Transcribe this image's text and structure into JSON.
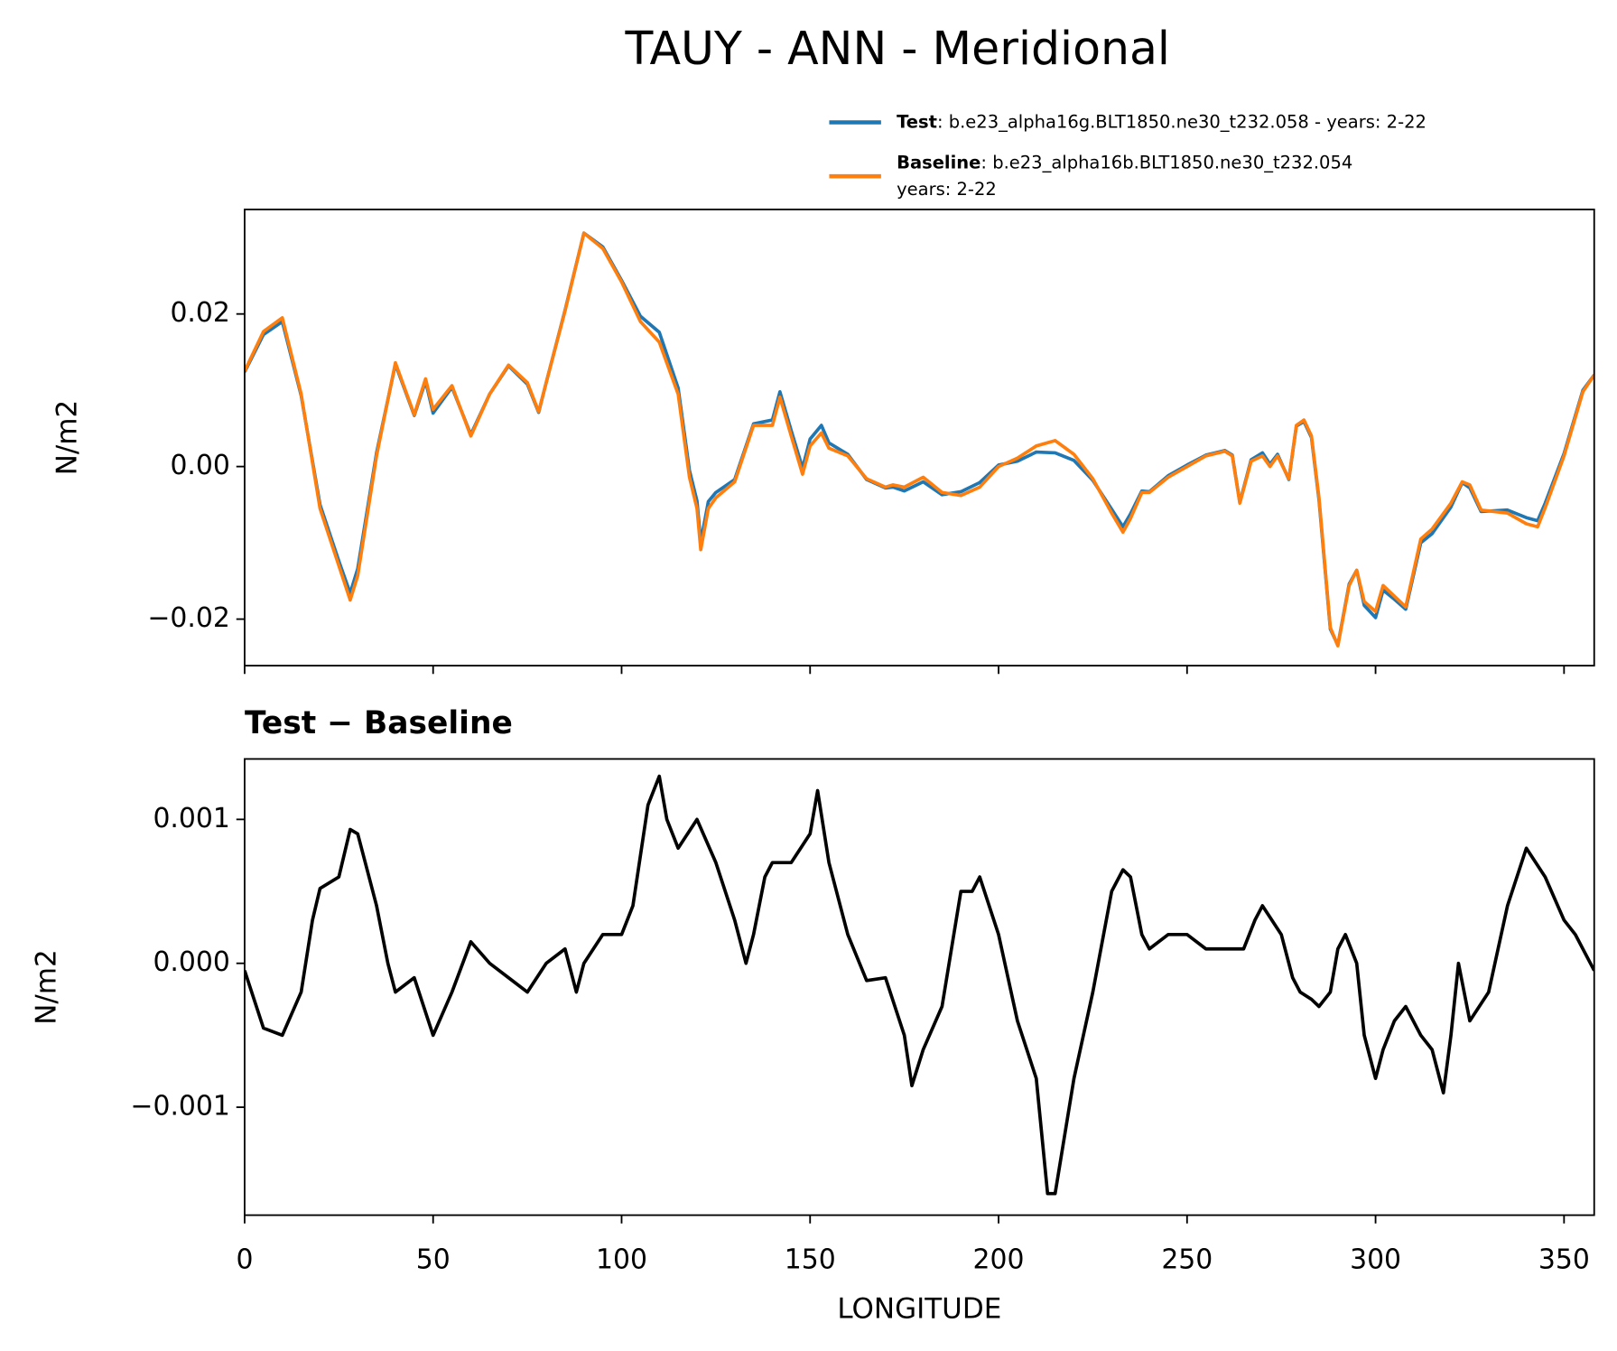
{
  "title": "TAUY - ANN - Meridional",
  "chart_data": [
    {
      "type": "line",
      "ylabel": "N/m2",
      "xlim": [
        0,
        358
      ],
      "ylim": [
        -0.0261,
        0.0337
      ],
      "xticks": [
        0,
        50,
        100,
        150,
        200,
        250,
        300,
        350
      ],
      "yticks": [
        {
          "value": -0.02,
          "label": "−0.02"
        },
        {
          "value": 0,
          "label": "0.00"
        },
        {
          "value": 0.02,
          "label": "0.02"
        }
      ],
      "legend": "upper right",
      "x": [
        0,
        5,
        10,
        15,
        20,
        25,
        28,
        30,
        35,
        40,
        45,
        48,
        50,
        55,
        60,
        65,
        70,
        75,
        78,
        80,
        85,
        90,
        95,
        100,
        105,
        110,
        115,
        118,
        120,
        121,
        123,
        125,
        130,
        135,
        140,
        142,
        145,
        148,
        150,
        153,
        155,
        160,
        165,
        170,
        172,
        175,
        180,
        185,
        190,
        195,
        200,
        205,
        210,
        215,
        220,
        225,
        230,
        233,
        235,
        238,
        240,
        245,
        250,
        255,
        260,
        262,
        264,
        267,
        270,
        272,
        274,
        277,
        279,
        281,
        283,
        285,
        288,
        290,
        293,
        295,
        297,
        300,
        302,
        305,
        308,
        312,
        315,
        320,
        323,
        325,
        328,
        335,
        340,
        343,
        345,
        350,
        355,
        358
      ],
      "series": [
        {
          "name": "Test",
          "description": [
            ": b.e23_alpha16g.BLT1850.ne30_t232.058 - years: 2-22"
          ],
          "color": "#1f77b4",
          "values": [
            0.0124,
            0.0173,
            0.019,
            0.0093,
            -0.005,
            -0.0124,
            -0.0166,
            -0.0134,
            0.0018,
            0.0134,
            0.0067,
            0.0112,
            0.007,
            0.0104,
            0.0042,
            0.0095,
            0.0132,
            0.0108,
            0.0071,
            0.011,
            0.0205,
            0.0306,
            0.0288,
            0.0244,
            0.0197,
            0.0176,
            0.0103,
            -0.0005,
            -0.0045,
            -0.0099,
            -0.0046,
            -0.0034,
            -0.0017,
            0.0056,
            0.0061,
            0.0098,
            0.0047,
            -0.0002,
            0.0036,
            0.0054,
            0.0031,
            0.0016,
            -0.0017,
            -0.0028,
            -0.0027,
            -0.0032,
            -0.002,
            -0.0037,
            -0.0033,
            -0.0021,
            0.0002,
            0.0007,
            0.0019,
            0.0018,
            0.0008,
            -0.0018,
            -0.0056,
            -0.0079,
            -0.0062,
            -0.0032,
            -0.0033,
            -0.0012,
            0.0002,
            0.0015,
            0.0021,
            0.0015,
            -0.0047,
            0.0009,
            0.0018,
            0.0003,
            0.0016,
            -0.0017,
            0.0053,
            0.0059,
            0.0038,
            -0.0044,
            -0.0213,
            -0.0234,
            -0.0154,
            -0.0136,
            -0.0182,
            -0.0198,
            -0.0162,
            -0.0174,
            -0.0187,
            -0.01,
            -0.0088,
            -0.0053,
            -0.0021,
            -0.0028,
            -0.0059,
            -0.0057,
            -0.0067,
            -0.0071,
            -0.0048,
            0.0017,
            0.01,
            0.012
          ]
        },
        {
          "name": "Baseline",
          "description": [
            ": b.e23_alpha16b.BLT1850.ne30_t232.054",
            "years: 2-22"
          ],
          "color": "#ff7f0e",
          "values": [
            0.0125,
            0.0177,
            0.0195,
            0.0095,
            -0.0055,
            -0.013,
            -0.0175,
            -0.0143,
            0.0014,
            0.0136,
            0.0068,
            0.0115,
            0.0075,
            0.0106,
            0.004,
            0.0095,
            0.0133,
            0.011,
            0.0072,
            0.011,
            0.0204,
            0.0306,
            0.0286,
            0.0242,
            0.019,
            0.0163,
            0.0095,
            -0.0014,
            -0.0055,
            -0.0109,
            -0.0055,
            -0.0041,
            -0.002,
            0.0054,
            0.0054,
            0.0091,
            0.004,
            -0.001,
            0.0027,
            0.0044,
            0.0024,
            0.0014,
            -0.0016,
            -0.0027,
            -0.0024,
            -0.0027,
            -0.0014,
            -0.0034,
            -0.0038,
            -0.0027,
            0.0,
            0.0011,
            0.0027,
            0.0034,
            0.0016,
            -0.0016,
            -0.0061,
            -0.0086,
            -0.0068,
            -0.0034,
            -0.0034,
            -0.0014,
            0.0,
            0.0014,
            0.002,
            0.0014,
            -0.0048,
            0.0007,
            0.0014,
            0.0,
            0.0014,
            -0.0016,
            0.0054,
            0.0061,
            0.004,
            -0.0041,
            -0.0211,
            -0.0235,
            -0.0156,
            -0.0136,
            -0.0177,
            -0.019,
            -0.0156,
            -0.017,
            -0.0184,
            -0.0095,
            -0.0082,
            -0.0048,
            -0.002,
            -0.0024,
            -0.0057,
            -0.0061,
            -0.0075,
            -0.0079,
            -0.0054,
            0.0014,
            0.0098,
            0.012
          ]
        }
      ]
    },
    {
      "type": "line",
      "subtitle": "Test − Baseline",
      "xlabel": "LONGITUDE",
      "ylabel": "N/m2",
      "xlim": [
        0,
        358
      ],
      "ylim": [
        -0.00175,
        0.00142
      ],
      "xticks": [
        0,
        50,
        100,
        150,
        200,
        250,
        300,
        350
      ],
      "yticks": [
        {
          "value": -0.001,
          "label": "−0.001"
        },
        {
          "value": 0,
          "label": "0.000"
        },
        {
          "value": 0.001,
          "label": "0.001"
        }
      ],
      "x": [
        0,
        5,
        10,
        15,
        18,
        20,
        25,
        28,
        30,
        33,
        35,
        38,
        40,
        45,
        50,
        55,
        60,
        65,
        70,
        75,
        80,
        85,
        88,
        90,
        95,
        100,
        103,
        107,
        110,
        112,
        115,
        120,
        125,
        130,
        133,
        135,
        138,
        140,
        145,
        150,
        152,
        155,
        160,
        165,
        170,
        175,
        177,
        180,
        185,
        190,
        193,
        195,
        200,
        205,
        210,
        213,
        215,
        220,
        225,
        230,
        233,
        235,
        238,
        240,
        245,
        250,
        255,
        260,
        265,
        268,
        270,
        275,
        278,
        280,
        283,
        285,
        288,
        290,
        292,
        295,
        297,
        300,
        302,
        305,
        308,
        312,
        315,
        318,
        320,
        322,
        325,
        330,
        335,
        340,
        345,
        350,
        353,
        358
      ],
      "series": [
        {
          "color": "#000000",
          "values": [
            -5e-05,
            -0.00045,
            -0.0005,
            -0.0002,
            0.0003,
            0.00052,
            0.0006,
            0.00093,
            0.0009,
            0.0006,
            0.0004,
            0.0,
            -0.0002,
            -0.0001,
            -0.0005,
            -0.0002,
            0.00015,
            0.0,
            -0.0001,
            -0.0002,
            0.0,
            0.0001,
            -0.0002,
            0.0,
            0.0002,
            0.0002,
            0.0004,
            0.0011,
            0.0013,
            0.001,
            0.0008,
            0.001,
            0.0007,
            0.0003,
            0.0,
            0.0002,
            0.0006,
            0.0007,
            0.0007,
            0.0009,
            0.0012,
            0.0007,
            0.0002,
            -0.00012,
            -0.0001,
            -0.0005,
            -0.00085,
            -0.0006,
            -0.0003,
            0.0005,
            0.0005,
            0.0006,
            0.0002,
            -0.0004,
            -0.0008,
            -0.0016,
            -0.0016,
            -0.0008,
            -0.0002,
            0.0005,
            0.00065,
            0.0006,
            0.0002,
            0.0001,
            0.0002,
            0.0002,
            0.0001,
            0.0001,
            0.0001,
            0.0003,
            0.0004,
            0.0002,
            -0.0001,
            -0.0002,
            -0.00025,
            -0.0003,
            -0.0002,
            0.0001,
            0.0002,
            0.0,
            -0.0005,
            -0.0008,
            -0.0006,
            -0.0004,
            -0.0003,
            -0.0005,
            -0.0006,
            -0.0009,
            -0.0005,
            0.0,
            -0.0004,
            -0.0002,
            0.0004,
            0.0008,
            0.0006,
            0.0003,
            0.0002,
            -5e-05
          ]
        }
      ]
    }
  ]
}
